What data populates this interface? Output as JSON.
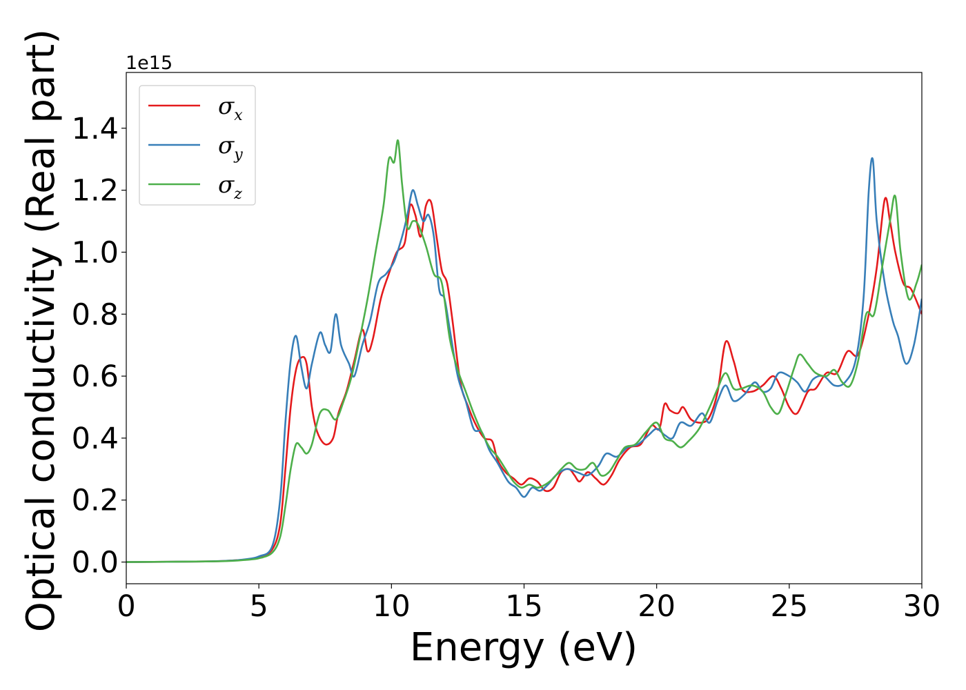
{
  "chart_data": {
    "type": "line",
    "xlabel": "Energy (eV)",
    "ylabel": "Optical conductivity (Real part)",
    "y_offset_label": "1e15",
    "xlim": [
      0,
      30
    ],
    "ylim": [
      -0.07,
      1.58
    ],
    "x_ticks": [
      0,
      5,
      10,
      15,
      20,
      25,
      30
    ],
    "x_tick_labels": [
      "0",
      "5",
      "10",
      "15",
      "20",
      "25",
      "30"
    ],
    "y_ticks": [
      0.0,
      0.2,
      0.4,
      0.6,
      0.8,
      1.0,
      1.2,
      1.4
    ],
    "y_tick_labels": [
      "0.0",
      "0.2",
      "0.4",
      "0.6",
      "0.8",
      "1.0",
      "1.2",
      "1.4"
    ],
    "grid": false,
    "legend_position": "top-left",
    "series": [
      {
        "name": "σx",
        "symbol": "σ",
        "subscript": "x",
        "color": "#e41a1c",
        "points": [
          [
            0,
            0
          ],
          [
            3,
            0.002
          ],
          [
            4,
            0.005
          ],
          [
            4.5,
            0.008
          ],
          [
            5,
            0.015
          ],
          [
            5.5,
            0.04
          ],
          [
            5.8,
            0.12
          ],
          [
            6.0,
            0.3
          ],
          [
            6.2,
            0.5
          ],
          [
            6.4,
            0.62
          ],
          [
            6.6,
            0.66
          ],
          [
            6.8,
            0.64
          ],
          [
            7.0,
            0.5
          ],
          [
            7.2,
            0.42
          ],
          [
            7.5,
            0.38
          ],
          [
            7.8,
            0.4
          ],
          [
            8.0,
            0.48
          ],
          [
            8.3,
            0.55
          ],
          [
            8.6,
            0.65
          ],
          [
            8.9,
            0.75
          ],
          [
            9.1,
            0.68
          ],
          [
            9.3,
            0.72
          ],
          [
            9.6,
            0.85
          ],
          [
            9.9,
            0.93
          ],
          [
            10.2,
            1.0
          ],
          [
            10.5,
            1.03
          ],
          [
            10.7,
            1.15
          ],
          [
            10.9,
            1.12
          ],
          [
            11.1,
            1.05
          ],
          [
            11.3,
            1.15
          ],
          [
            11.5,
            1.16
          ],
          [
            11.7,
            1.05
          ],
          [
            11.9,
            0.94
          ],
          [
            12.1,
            0.9
          ],
          [
            12.3,
            0.78
          ],
          [
            12.6,
            0.58
          ],
          [
            12.9,
            0.5
          ],
          [
            13.2,
            0.44
          ],
          [
            13.5,
            0.4
          ],
          [
            13.8,
            0.39
          ],
          [
            14.0,
            0.33
          ],
          [
            14.3,
            0.29
          ],
          [
            14.6,
            0.27
          ],
          [
            14.9,
            0.25
          ],
          [
            15.2,
            0.27
          ],
          [
            15.5,
            0.26
          ],
          [
            15.8,
            0.23
          ],
          [
            16.1,
            0.24
          ],
          [
            16.4,
            0.29
          ],
          [
            16.7,
            0.3
          ],
          [
            16.9,
            0.28
          ],
          [
            17.1,
            0.26
          ],
          [
            17.4,
            0.29
          ],
          [
            17.7,
            0.27
          ],
          [
            18.0,
            0.25
          ],
          [
            18.3,
            0.28
          ],
          [
            18.6,
            0.33
          ],
          [
            19.0,
            0.37
          ],
          [
            19.4,
            0.38
          ],
          [
            19.8,
            0.44
          ],
          [
            20.1,
            0.43
          ],
          [
            20.3,
            0.51
          ],
          [
            20.5,
            0.49
          ],
          [
            20.8,
            0.48
          ],
          [
            21.0,
            0.5
          ],
          [
            21.3,
            0.46
          ],
          [
            21.7,
            0.45
          ],
          [
            22.0,
            0.47
          ],
          [
            22.3,
            0.55
          ],
          [
            22.6,
            0.71
          ],
          [
            22.9,
            0.65
          ],
          [
            23.2,
            0.56
          ],
          [
            23.6,
            0.55
          ],
          [
            24.0,
            0.57
          ],
          [
            24.4,
            0.6
          ],
          [
            24.7,
            0.56
          ],
          [
            25.0,
            0.5
          ],
          [
            25.3,
            0.48
          ],
          [
            25.7,
            0.55
          ],
          [
            26.0,
            0.56
          ],
          [
            26.4,
            0.61
          ],
          [
            26.8,
            0.61
          ],
          [
            27.2,
            0.68
          ],
          [
            27.6,
            0.67
          ],
          [
            28.0,
            0.8
          ],
          [
            28.3,
            0.95
          ],
          [
            28.6,
            1.17
          ],
          [
            28.8,
            1.1
          ],
          [
            29.0,
            1.0
          ],
          [
            29.3,
            0.9
          ],
          [
            29.6,
            0.88
          ],
          [
            30.0,
            0.8
          ]
        ]
      },
      {
        "name": "σy",
        "symbol": "σ",
        "subscript": "y",
        "color": "#377eb8",
        "points": [
          [
            0,
            0
          ],
          [
            3,
            0.002
          ],
          [
            4,
            0.005
          ],
          [
            4.5,
            0.009
          ],
          [
            5,
            0.018
          ],
          [
            5.5,
            0.05
          ],
          [
            5.8,
            0.2
          ],
          [
            6.0,
            0.45
          ],
          [
            6.2,
            0.65
          ],
          [
            6.4,
            0.73
          ],
          [
            6.6,
            0.63
          ],
          [
            6.8,
            0.56
          ],
          [
            7.0,
            0.64
          ],
          [
            7.3,
            0.74
          ],
          [
            7.5,
            0.7
          ],
          [
            7.7,
            0.68
          ],
          [
            7.9,
            0.8
          ],
          [
            8.1,
            0.7
          ],
          [
            8.4,
            0.64
          ],
          [
            8.6,
            0.6
          ],
          [
            8.9,
            0.7
          ],
          [
            9.2,
            0.78
          ],
          [
            9.5,
            0.9
          ],
          [
            9.8,
            0.93
          ],
          [
            10.1,
            0.97
          ],
          [
            10.4,
            1.05
          ],
          [
            10.6,
            1.12
          ],
          [
            10.8,
            1.2
          ],
          [
            11.0,
            1.15
          ],
          [
            11.2,
            1.1
          ],
          [
            11.4,
            1.12
          ],
          [
            11.6,
            1.05
          ],
          [
            11.8,
            0.88
          ],
          [
            12.0,
            0.85
          ],
          [
            12.2,
            0.75
          ],
          [
            12.5,
            0.6
          ],
          [
            12.8,
            0.52
          ],
          [
            13.1,
            0.43
          ],
          [
            13.4,
            0.42
          ],
          [
            13.7,
            0.36
          ],
          [
            14.0,
            0.32
          ],
          [
            14.4,
            0.26
          ],
          [
            14.7,
            0.24
          ],
          [
            15.0,
            0.21
          ],
          [
            15.3,
            0.24
          ],
          [
            15.6,
            0.23
          ],
          [
            15.9,
            0.25
          ],
          [
            16.2,
            0.28
          ],
          [
            16.6,
            0.3
          ],
          [
            17.0,
            0.29
          ],
          [
            17.4,
            0.28
          ],
          [
            17.8,
            0.31
          ],
          [
            18.1,
            0.35
          ],
          [
            18.5,
            0.34
          ],
          [
            18.9,
            0.37
          ],
          [
            19.3,
            0.38
          ],
          [
            19.7,
            0.41
          ],
          [
            20.0,
            0.43
          ],
          [
            20.3,
            0.41
          ],
          [
            20.6,
            0.4
          ],
          [
            20.9,
            0.45
          ],
          [
            21.3,
            0.44
          ],
          [
            21.7,
            0.48
          ],
          [
            22.0,
            0.45
          ],
          [
            22.3,
            0.52
          ],
          [
            22.6,
            0.57
          ],
          [
            22.9,
            0.52
          ],
          [
            23.3,
            0.54
          ],
          [
            23.7,
            0.58
          ],
          [
            24.0,
            0.55
          ],
          [
            24.3,
            0.56
          ],
          [
            24.6,
            0.61
          ],
          [
            25.0,
            0.6
          ],
          [
            25.3,
            0.58
          ],
          [
            25.6,
            0.55
          ],
          [
            25.9,
            0.59
          ],
          [
            26.3,
            0.6
          ],
          [
            26.7,
            0.57
          ],
          [
            27.1,
            0.58
          ],
          [
            27.5,
            0.65
          ],
          [
            27.8,
            0.85
          ],
          [
            28.0,
            1.2
          ],
          [
            28.15,
            1.3
          ],
          [
            28.3,
            1.1
          ],
          [
            28.6,
            0.9
          ],
          [
            28.9,
            0.78
          ],
          [
            29.1,
            0.73
          ],
          [
            29.4,
            0.64
          ],
          [
            29.7,
            0.7
          ],
          [
            30.0,
            0.85
          ]
        ]
      },
      {
        "name": "σz",
        "symbol": "σ",
        "subscript": "z",
        "color": "#4daf4a",
        "points": [
          [
            0,
            0
          ],
          [
            3,
            0.002
          ],
          [
            4,
            0.004
          ],
          [
            4.5,
            0.007
          ],
          [
            5,
            0.012
          ],
          [
            5.5,
            0.03
          ],
          [
            5.8,
            0.08
          ],
          [
            6.0,
            0.18
          ],
          [
            6.2,
            0.3
          ],
          [
            6.4,
            0.38
          ],
          [
            6.6,
            0.37
          ],
          [
            6.8,
            0.35
          ],
          [
            7.0,
            0.38
          ],
          [
            7.3,
            0.48
          ],
          [
            7.6,
            0.49
          ],
          [
            7.9,
            0.46
          ],
          [
            8.2,
            0.52
          ],
          [
            8.5,
            0.6
          ],
          [
            8.8,
            0.72
          ],
          [
            9.1,
            0.85
          ],
          [
            9.4,
            1.0
          ],
          [
            9.7,
            1.15
          ],
          [
            9.9,
            1.3
          ],
          [
            10.1,
            1.29
          ],
          [
            10.25,
            1.36
          ],
          [
            10.4,
            1.22
          ],
          [
            10.6,
            1.08
          ],
          [
            10.8,
            1.1
          ],
          [
            11.0,
            1.09
          ],
          [
            11.3,
            1.02
          ],
          [
            11.6,
            0.93
          ],
          [
            11.9,
            0.9
          ],
          [
            12.2,
            0.72
          ],
          [
            12.5,
            0.62
          ],
          [
            12.8,
            0.55
          ],
          [
            13.1,
            0.48
          ],
          [
            13.4,
            0.42
          ],
          [
            13.7,
            0.37
          ],
          [
            14.0,
            0.34
          ],
          [
            14.3,
            0.3
          ],
          [
            14.6,
            0.26
          ],
          [
            14.9,
            0.24
          ],
          [
            15.2,
            0.25
          ],
          [
            15.5,
            0.24
          ],
          [
            15.8,
            0.25
          ],
          [
            16.1,
            0.27
          ],
          [
            16.4,
            0.3
          ],
          [
            16.7,
            0.32
          ],
          [
            17.0,
            0.3
          ],
          [
            17.3,
            0.3
          ],
          [
            17.6,
            0.32
          ],
          [
            17.9,
            0.28
          ],
          [
            18.2,
            0.29
          ],
          [
            18.5,
            0.33
          ],
          [
            18.8,
            0.37
          ],
          [
            19.2,
            0.38
          ],
          [
            19.6,
            0.42
          ],
          [
            20.0,
            0.45
          ],
          [
            20.3,
            0.4
          ],
          [
            20.6,
            0.39
          ],
          [
            20.9,
            0.37
          ],
          [
            21.2,
            0.39
          ],
          [
            21.6,
            0.43
          ],
          [
            22.0,
            0.5
          ],
          [
            22.3,
            0.56
          ],
          [
            22.6,
            0.61
          ],
          [
            22.9,
            0.56
          ],
          [
            23.2,
            0.56
          ],
          [
            23.6,
            0.57
          ],
          [
            24.0,
            0.55
          ],
          [
            24.3,
            0.5
          ],
          [
            24.6,
            0.48
          ],
          [
            24.9,
            0.55
          ],
          [
            25.2,
            0.63
          ],
          [
            25.4,
            0.67
          ],
          [
            25.7,
            0.64
          ],
          [
            26.0,
            0.61
          ],
          [
            26.4,
            0.6
          ],
          [
            26.7,
            0.62
          ],
          [
            27.0,
            0.58
          ],
          [
            27.3,
            0.57
          ],
          [
            27.6,
            0.65
          ],
          [
            27.9,
            0.8
          ],
          [
            28.2,
            0.8
          ],
          [
            28.5,
            0.95
          ],
          [
            28.8,
            1.1
          ],
          [
            29.0,
            1.18
          ],
          [
            29.2,
            1.0
          ],
          [
            29.5,
            0.85
          ],
          [
            29.8,
            0.9
          ],
          [
            30.0,
            0.96
          ]
        ]
      }
    ]
  }
}
